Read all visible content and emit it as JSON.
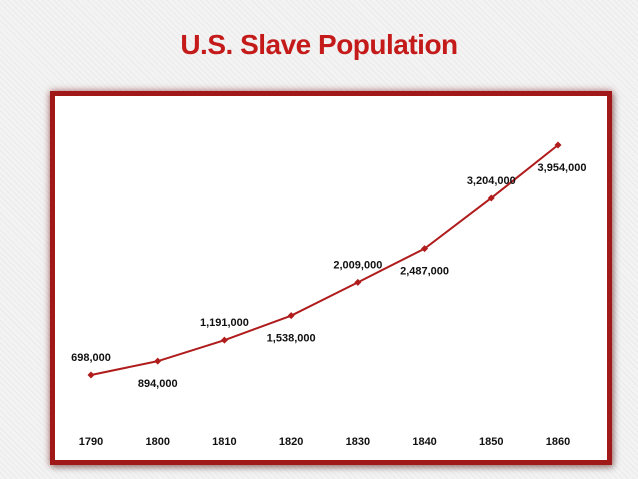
{
  "slide": {
    "title": "U.S. Slave Population"
  },
  "colors": {
    "title": "#c41a1a",
    "frame": "#a01818",
    "line": "#b01c1c",
    "background": "#f3f3f3"
  },
  "chart_data": {
    "type": "line",
    "title": "",
    "xlabel": "",
    "ylabel": "",
    "categories": [
      "1790",
      "1800",
      "1810",
      "1820",
      "1830",
      "1840",
      "1850",
      "1860"
    ],
    "series": [
      {
        "values": [
          698000,
          894000,
          1191000,
          1538000,
          2009000,
          2487000,
          3204000,
          3954000
        ],
        "data_labels": [
          "698,000",
          "894,000",
          "1,191,000",
          "1,538,000",
          "2,009,000",
          "2,487,000",
          "3,204,000",
          "3,954,000"
        ],
        "label_positions": [
          "above",
          "below",
          "above",
          "below",
          "above",
          "below",
          "above",
          "below"
        ]
      }
    ],
    "ylim": [
      0,
      4200000
    ],
    "grid": false,
    "legend": "none",
    "marker": "diamond"
  }
}
